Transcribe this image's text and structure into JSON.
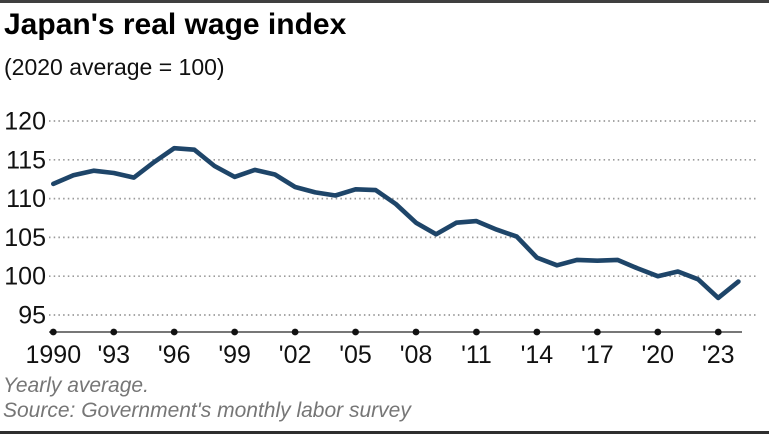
{
  "header": {
    "title": "Japan's real wage index",
    "subtitle": "(2020 average = 100)"
  },
  "footer": {
    "note": "Yearly average.",
    "source": "Source: Government's monthly labor survey"
  },
  "colors": {
    "line": "#1e4569",
    "grid": "#9a9a9a",
    "axis": "#777777",
    "tick_dot": "#111111",
    "tick_text": "#111111",
    "muted_text": "#767676"
  },
  "chart_data": {
    "type": "line",
    "title": "Japan's real wage index",
    "subtitle": "(2020 average = 100)",
    "series_name": "Real wage index, yearly average",
    "x": [
      1990,
      1991,
      1992,
      1993,
      1994,
      1995,
      1996,
      1997,
      1998,
      1999,
      2000,
      2001,
      2002,
      2003,
      2004,
      2005,
      2006,
      2007,
      2008,
      2009,
      2010,
      2011,
      2012,
      2013,
      2014,
      2015,
      2016,
      2017,
      2018,
      2019,
      2020,
      2021,
      2022,
      2023,
      2024
    ],
    "values": [
      111.9,
      113.0,
      113.6,
      113.3,
      112.7,
      114.7,
      116.5,
      116.3,
      114.2,
      112.8,
      113.7,
      113.1,
      111.5,
      110.8,
      110.4,
      111.2,
      111.1,
      109.3,
      106.9,
      105.4,
      106.9,
      107.1,
      106.0,
      105.1,
      102.4,
      101.4,
      102.1,
      102.0,
      102.1,
      101.0,
      100.0,
      100.6,
      99.6,
      97.2,
      99.3
    ],
    "xlabel": "",
    "ylabel": "",
    "ylim": [
      95,
      120
    ],
    "yticks": [
      95,
      100,
      105,
      110,
      115,
      120
    ],
    "xtick_years": [
      1990,
      1993,
      1996,
      1999,
      2002,
      2005,
      2008,
      2011,
      2014,
      2017,
      2020,
      2023
    ],
    "xtick_labels": [
      "1990",
      "'93",
      "'96",
      "'99",
      "'02",
      "'05",
      "'08",
      "'11",
      "'14",
      "'17",
      "'20",
      "'23"
    ],
    "grid": "horizontal-dotted",
    "legend": "none"
  }
}
